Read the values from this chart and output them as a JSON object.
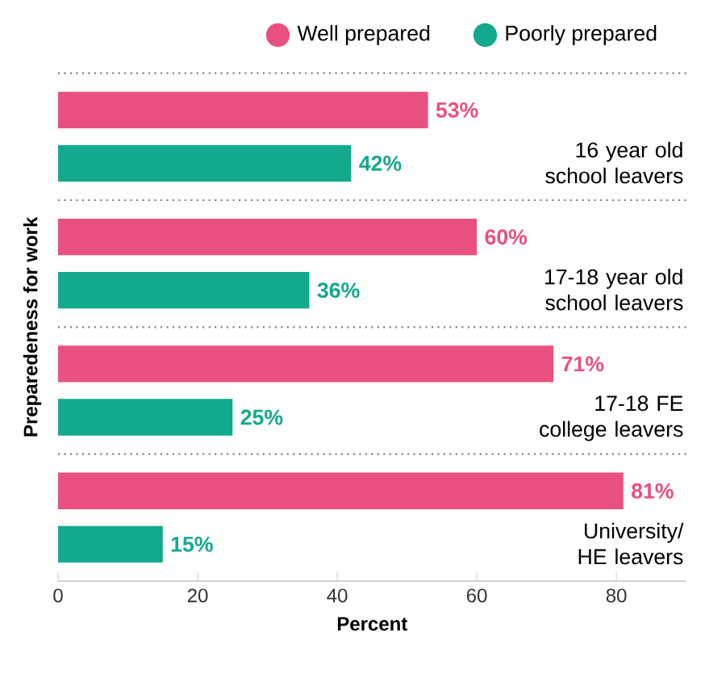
{
  "chart_data": {
    "type": "bar",
    "orientation": "horizontal",
    "xlabel": "Percent",
    "ylabel": "Preparedeness for work",
    "categories": [
      "16 year old school leavers",
      "17-18 year old school leavers",
      "17-18 FE college leavers",
      "University/ HE leavers"
    ],
    "series": [
      {
        "name": "Well prepared",
        "color": "#e9507f",
        "values": [
          53,
          60,
          71,
          81
        ],
        "value_labels": [
          "53%",
          "60%",
          "71%",
          "81%"
        ]
      },
      {
        "name": "Poorly prepared",
        "color": "#12a98c",
        "values": [
          42,
          36,
          25,
          15
        ],
        "value_labels": [
          "42%",
          "36%",
          "25%",
          "15%"
        ]
      }
    ],
    "xlim": [
      0,
      90
    ],
    "xticks": [
      0,
      20,
      40,
      60,
      80
    ],
    "legend": "top",
    "grid": false
  }
}
